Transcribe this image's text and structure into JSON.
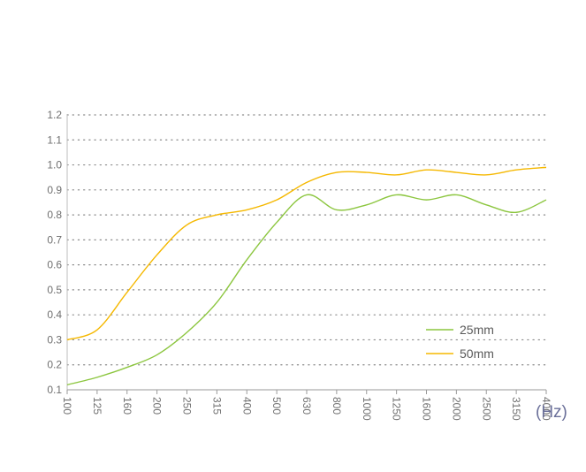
{
  "chart_data": {
    "type": "line",
    "title": "",
    "xlabel": "(Hz)",
    "ylabel": "",
    "categories": [
      "100",
      "125",
      "160",
      "200",
      "250",
      "315",
      "400",
      "500",
      "630",
      "800",
      "1000",
      "1250",
      "1600",
      "2000",
      "2500",
      "3150",
      "4000"
    ],
    "ylim": [
      0.1,
      1.2
    ],
    "yticks": [
      "0.1",
      "0.2",
      "0.3",
      "0.4",
      "0.5",
      "0.6",
      "0.7",
      "0.8",
      "0.9",
      "1.0",
      "1.1",
      "1.2"
    ],
    "grid": "horizontal-dotted",
    "legend": "bottom-right",
    "series": [
      {
        "name": "25mm",
        "color": "#8cc63f",
        "values": [
          0.12,
          0.15,
          0.19,
          0.24,
          0.33,
          0.45,
          0.62,
          0.77,
          0.88,
          0.82,
          0.84,
          0.88,
          0.86,
          0.88,
          0.84,
          0.81,
          0.86
        ]
      },
      {
        "name": "50mm",
        "color": "#f5b800",
        "values": [
          0.3,
          0.34,
          0.49,
          0.64,
          0.76,
          0.8,
          0.82,
          0.86,
          0.93,
          0.97,
          0.97,
          0.96,
          0.98,
          0.97,
          0.96,
          0.98,
          0.99
        ]
      }
    ]
  }
}
